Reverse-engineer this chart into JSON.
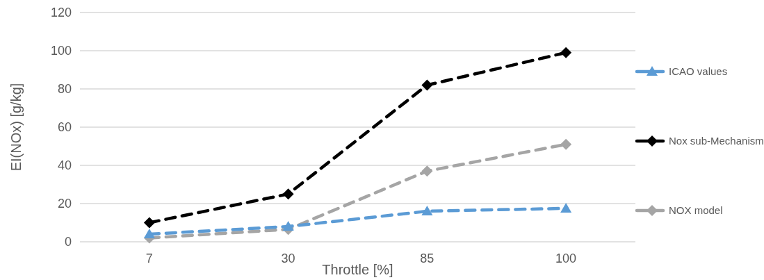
{
  "chart_data": {
    "type": "line",
    "xlabel": "Throttle [%]",
    "ylabel": "EI(NOx) [g/kg]",
    "categories": [
      "7",
      "30",
      "85",
      "100"
    ],
    "series": [
      {
        "name": "ICAO values",
        "color": "#5b9bd5",
        "values": [
          4,
          8,
          16,
          17.5
        ],
        "marker": "triangle",
        "line_style": "dashed"
      },
      {
        "name": "Nox sub-Mechanism",
        "color": "#000000",
        "values": [
          10,
          25,
          82,
          99
        ],
        "marker": "diamond",
        "line_style": "dashed"
      },
      {
        "name": "NOX model",
        "color": "#a5a5a5",
        "values": [
          2,
          6.5,
          37,
          51
        ],
        "marker": "diamond",
        "line_style": "dashed"
      }
    ],
    "ylim": [
      0,
      120
    ],
    "yticks": [
      0,
      20,
      40,
      60,
      80,
      100,
      120
    ],
    "grid": "y",
    "legend": "right"
  }
}
